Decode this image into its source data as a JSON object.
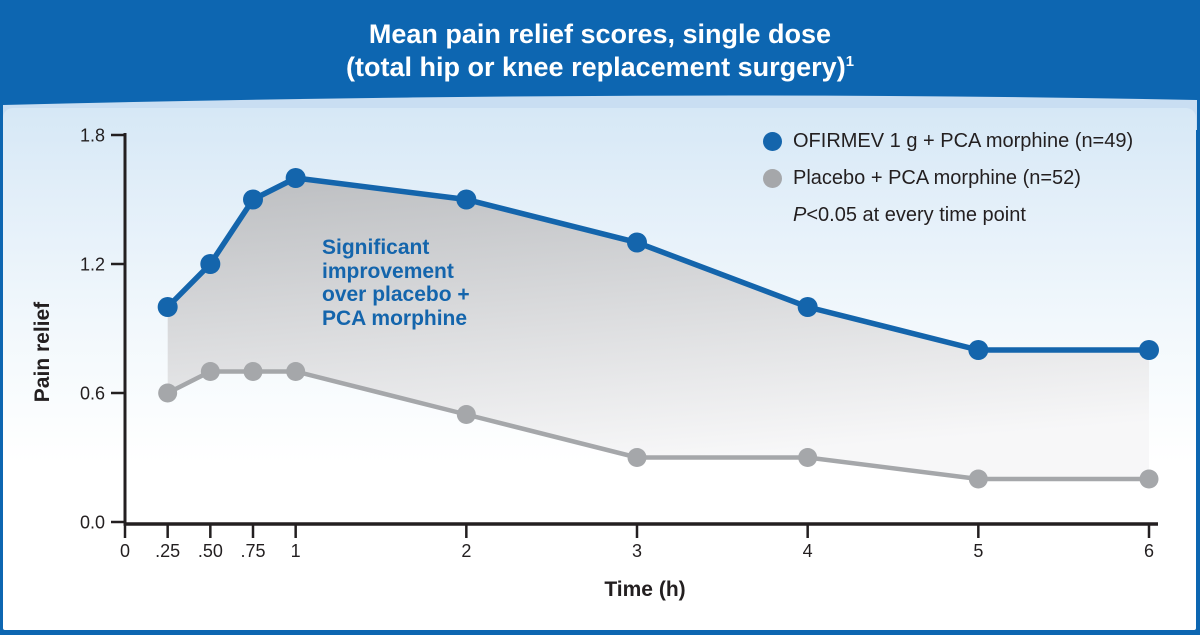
{
  "header": {
    "title_line1": "Mean pain relief scores, single dose",
    "title_line2": "(total hip or knee replacement surgery)",
    "title_superscript": "1"
  },
  "legend": {
    "items": [
      {
        "label": "OFIRMEV 1 g + PCA morphine (n=49)",
        "color": "#1465ac"
      },
      {
        "label": "Placebo + PCA morphine (n=52)",
        "color": "#a5a7aa"
      }
    ],
    "note_prefix": "P",
    "note_rest": "<0.05 at every time point"
  },
  "annotation": {
    "text": "Significant\nimprovement\nover placebo +\nPCA morphine",
    "color": "#1465ac"
  },
  "chart_data": {
    "type": "line",
    "title": "Mean pain relief scores, single dose (total hip or knee replacement surgery)",
    "x": [
      0.25,
      0.5,
      0.75,
      1,
      2,
      3,
      4,
      5,
      6
    ],
    "series": [
      {
        "name": "OFIRMEV 1 g + PCA morphine (n=49)",
        "color": "#1465ac",
        "values": [
          1.0,
          1.2,
          1.5,
          1.6,
          1.5,
          1.3,
          1.0,
          0.8,
          0.8
        ]
      },
      {
        "name": "Placebo + PCA morphine (n=52)",
        "color": "#a5a7aa",
        "values": [
          0.6,
          0.7,
          0.7,
          0.7,
          0.5,
          0.3,
          0.3,
          0.2,
          0.2
        ]
      }
    ],
    "xlabel": "Time (h)",
    "ylabel": "Pain relief",
    "xlim": [
      0,
      6
    ],
    "ylim": [
      0,
      1.8
    ],
    "xticks": [
      {
        "v": 0,
        "label": "0"
      },
      {
        "v": 0.25,
        "label": ".25"
      },
      {
        "v": 0.5,
        "label": ".50"
      },
      {
        "v": 0.75,
        "label": ".75"
      },
      {
        "v": 1,
        "label": "1"
      },
      {
        "v": 2,
        "label": "2"
      },
      {
        "v": 3,
        "label": "3"
      },
      {
        "v": 4,
        "label": "4"
      },
      {
        "v": 5,
        "label": "5"
      },
      {
        "v": 6,
        "label": "6"
      }
    ],
    "yticks": [
      {
        "v": 0.0,
        "label": "0.0"
      },
      {
        "v": 0.6,
        "label": "0.6"
      },
      {
        "v": 1.2,
        "label": "1.2"
      },
      {
        "v": 1.8,
        "label": "1.8"
      }
    ],
    "grid": false,
    "legend_position": "top-right",
    "band_fill": {
      "from": "#bcbec1",
      "to": "#f7f7f8"
    },
    "axis_color": "#231f20"
  },
  "colors": {
    "frame_blue": "#0d66b1",
    "arc_band": "#c9def2"
  }
}
